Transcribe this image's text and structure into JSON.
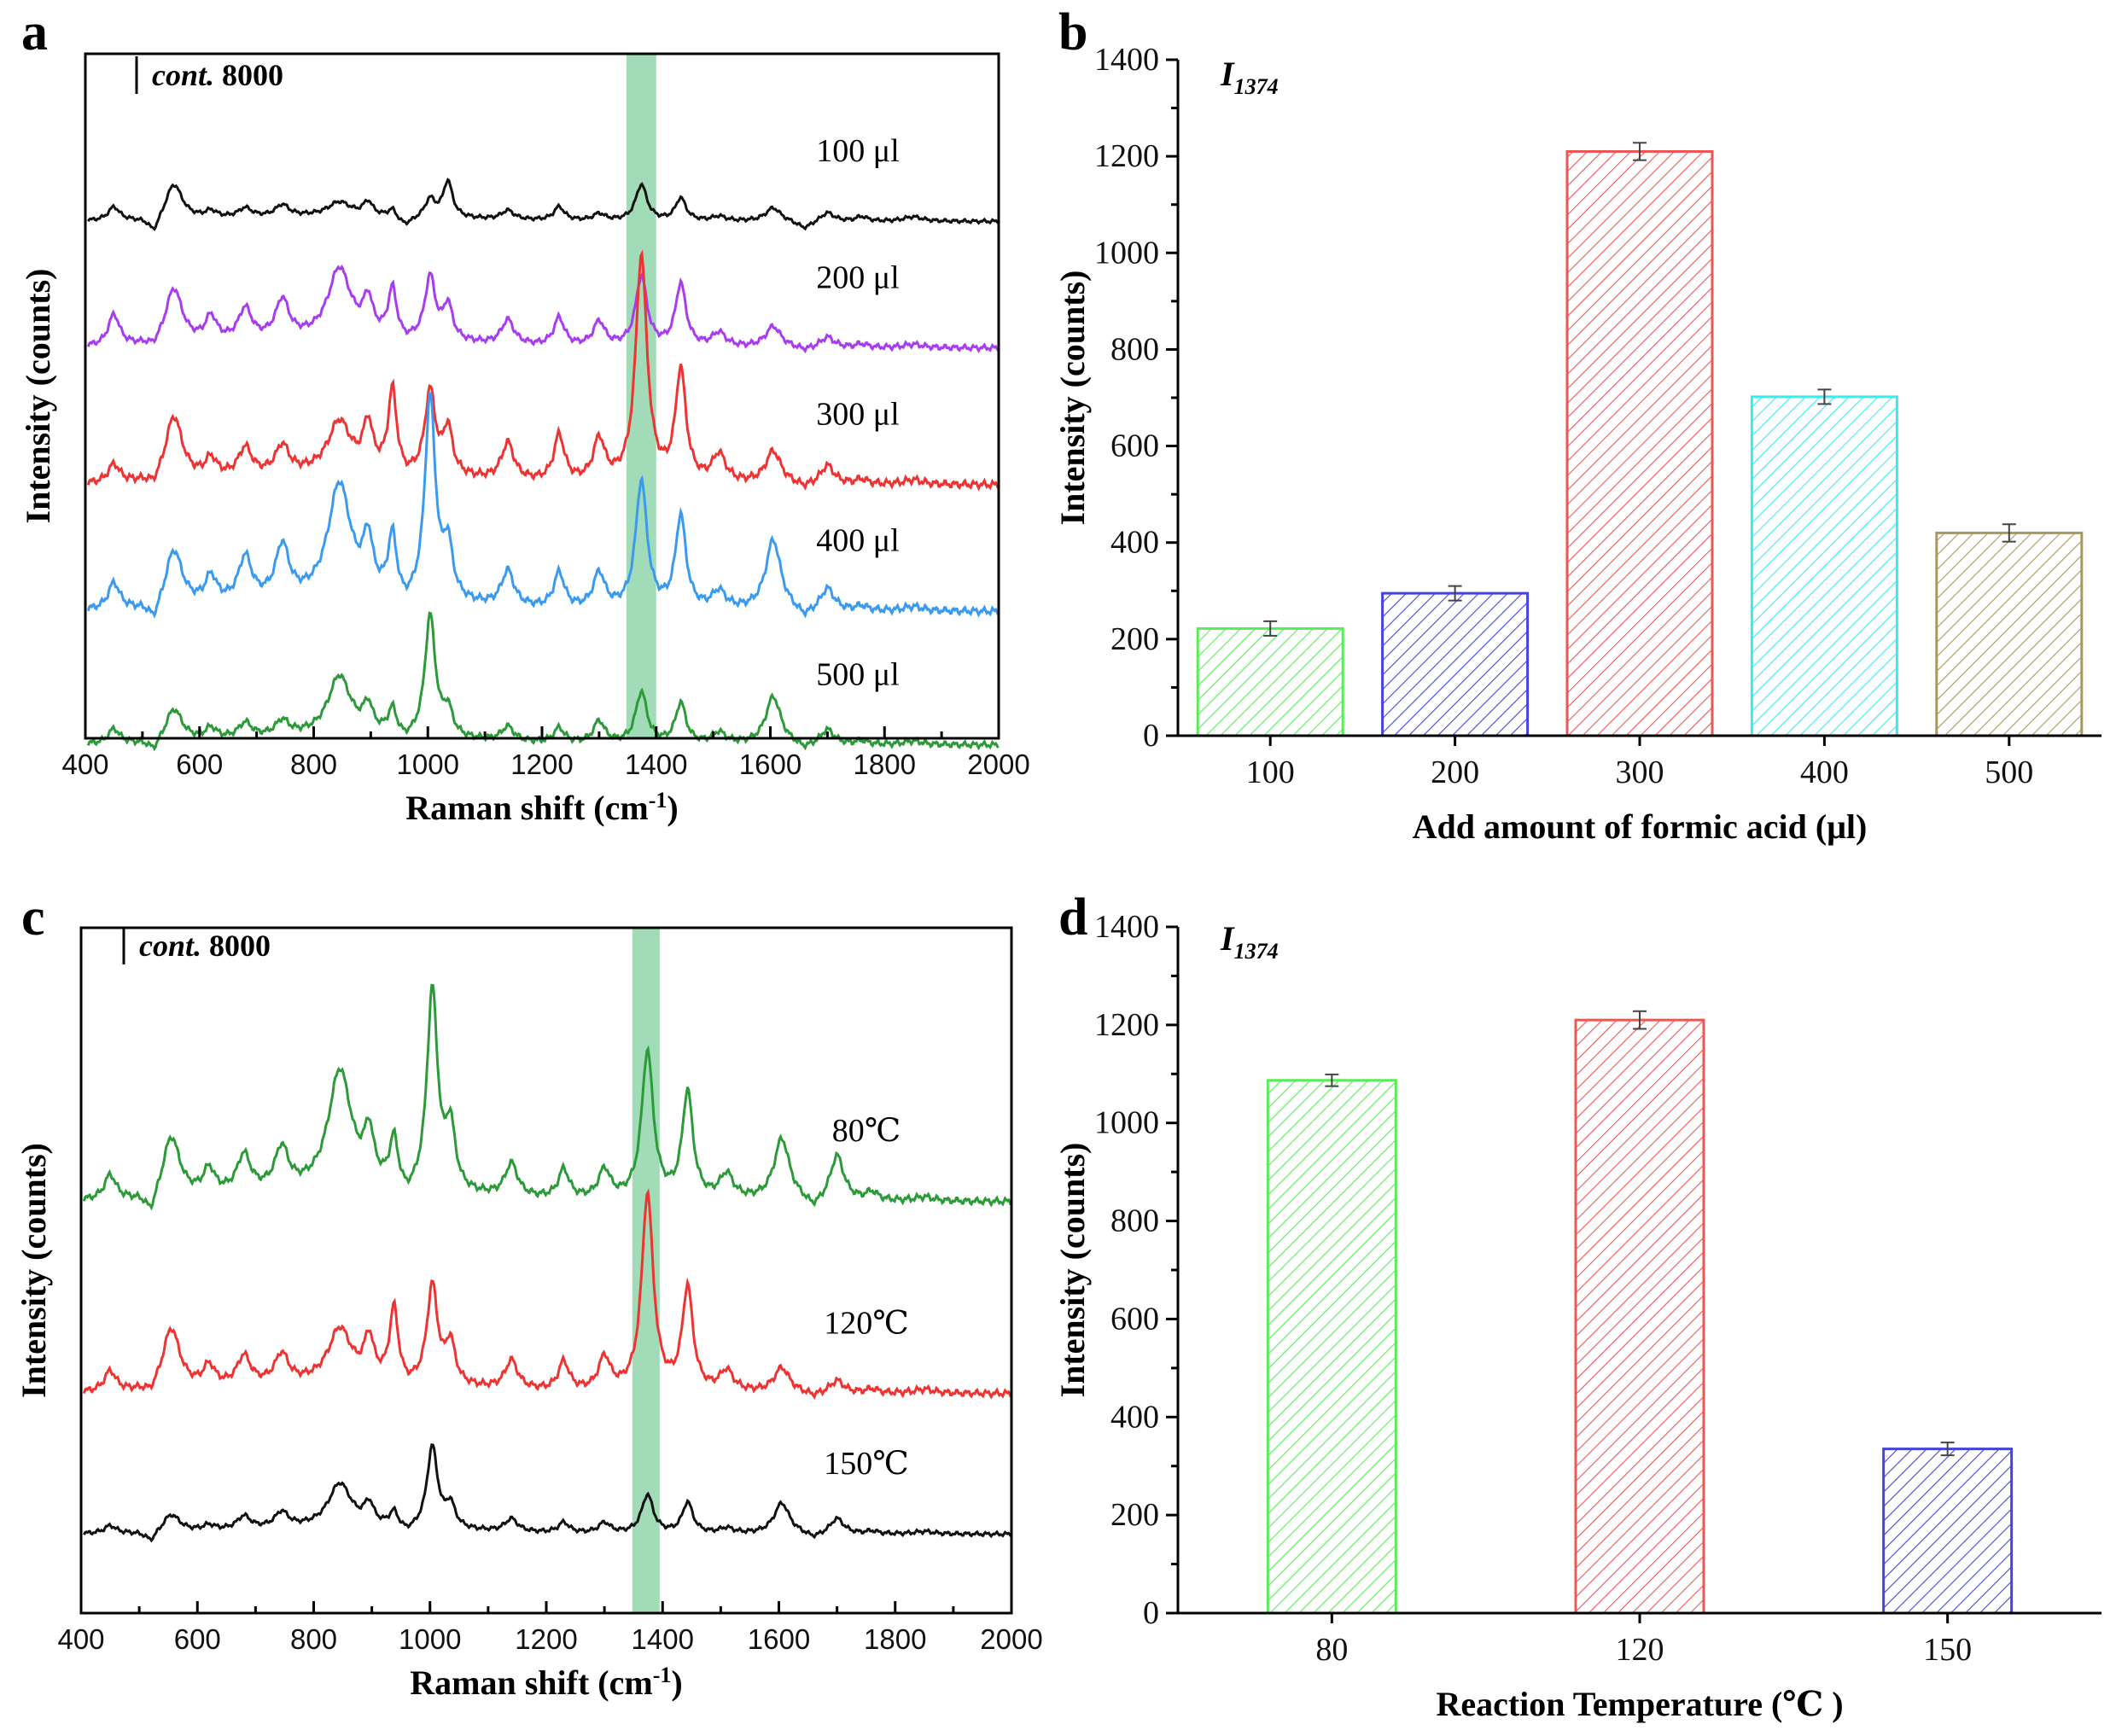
{
  "colors": {
    "black": "#111111",
    "purple": "#a83cf0",
    "red": "#ee3333",
    "blue": "#3a9af0",
    "green": "#2d9a3a",
    "highlight": "#92d5aa",
    "bar_green": "#55ee55",
    "bar_blue": "#4444dd",
    "bar_red": "#ee5555",
    "bar_cyan": "#33eeee",
    "bar_olive": "#aa9955"
  },
  "chart_data": [
    {
      "id": "a",
      "panel_label": "a",
      "type": "line",
      "xlabel": "Raman shift (cm",
      "xlabel_sup": "-1",
      "xlabel_tail": ")",
      "ylabel": "Intensity (counts)",
      "xlim": [
        400,
        2000
      ],
      "xticks": [
        400,
        600,
        800,
        1000,
        1200,
        1400,
        1600,
        1800,
        2000
      ],
      "highlight_band": [
        1348,
        1400
      ],
      "scale_bar": {
        "italic": "cont.",
        "value": "8000"
      },
      "series": [
        {
          "name": "100 µl",
          "label": "100 μl",
          "color_key": "black",
          "offset": 0.755,
          "scale": 0.22,
          "amps": [
            0.3,
            0.8,
            0.15,
            0.2,
            0.25,
            0.3,
            0.3,
            0.2,
            0.4,
            0.8,
            0.2,
            0.3,
            0.15,
            0.8,
            0.5,
            0.1,
            0.3,
            0.2,
            0.1,
            0.1
          ],
          "dip": -0.35
        },
        {
          "name": "200 µl",
          "label": "200 μl",
          "color_key": "purple",
          "offset": 0.57,
          "scale": 0.34,
          "amps": [
            0.45,
            0.8,
            0.35,
            0.45,
            0.55,
            1.0,
            0.5,
            0.7,
            0.9,
            0.5,
            0.35,
            0.4,
            0.35,
            1.0,
            0.9,
            0.2,
            0.3,
            0.15,
            0.05,
            0.05
          ],
          "dip": -0.1
        },
        {
          "name": "300 µl",
          "label": "300 μl",
          "color_key": "red",
          "offset": 0.37,
          "scale": 0.45,
          "amps": [
            0.2,
            0.7,
            0.2,
            0.3,
            0.3,
            0.55,
            0.5,
            0.9,
            0.9,
            0.5,
            0.4,
            0.5,
            0.45,
            2.45,
            1.2,
            0.3,
            0.35,
            0.2,
            0.05,
            0.05
          ],
          "dip": -0.1
        },
        {
          "name": "400 µl",
          "label": "400 μl",
          "color_key": "blue",
          "offset": 0.185,
          "scale": 0.43,
          "amps": [
            0.3,
            0.65,
            0.3,
            0.5,
            0.6,
            1.3,
            0.6,
            0.7,
            2.3,
            0.6,
            0.4,
            0.4,
            0.4,
            1.45,
            1.05,
            0.2,
            0.8,
            0.25,
            0.05,
            0.05
          ],
          "dip": -0.2
        },
        {
          "name": "500 µl",
          "label": "500 μl",
          "color_key": "green",
          "offset": -0.01,
          "scale": 0.36,
          "amps": [
            0.2,
            0.45,
            0.15,
            0.2,
            0.2,
            0.8,
            0.35,
            0.35,
            1.65,
            0.35,
            0.2,
            0.2,
            0.3,
            0.7,
            0.55,
            0.15,
            0.65,
            0.2,
            0.05,
            0.05
          ],
          "dip": -0.15
        }
      ]
    },
    {
      "id": "b",
      "panel_label": "b",
      "type": "bar",
      "title": "I",
      "title_sub": "1374",
      "xlabel": "Add amount of formic acid (μl)",
      "ylabel": "Intensity (counts)",
      "ylim": [
        0,
        1400
      ],
      "yticks": [
        0,
        200,
        400,
        600,
        800,
        1000,
        1200,
        1400
      ],
      "categories": [
        "100",
        "200",
        "300",
        "400",
        "500"
      ],
      "values": [
        222,
        295,
        1210,
        702,
        420
      ],
      "errors": [
        15,
        15,
        18,
        15,
        18
      ],
      "bar_color_keys": [
        "bar_green",
        "bar_blue",
        "bar_red",
        "bar_cyan",
        "bar_olive"
      ]
    },
    {
      "id": "c",
      "panel_label": "c",
      "type": "line",
      "xlabel": "Raman shift (cm",
      "xlabel_sup": "-1",
      "xlabel_tail": ")",
      "ylabel": "Intensity (counts)",
      "xlim": [
        400,
        2000
      ],
      "xticks": [
        400,
        600,
        800,
        1000,
        1200,
        1400,
        1600,
        1800,
        2000
      ],
      "highlight_band": [
        1348,
        1395
      ],
      "scale_bar": {
        "italic": "cont.",
        "value": "8000"
      },
      "series": [
        {
          "name": "80°C",
          "label": "80℃",
          "color_key": "green",
          "offset": 0.6,
          "scale": 0.4,
          "amps": [
            0.3,
            0.75,
            0.3,
            0.45,
            0.5,
            1.45,
            0.6,
            0.6,
            2.45,
            0.75,
            0.4,
            0.35,
            0.35,
            1.8,
            1.3,
            0.3,
            0.75,
            0.55,
            0.1,
            0.05
          ],
          "dip": -0.25
        },
        {
          "name": "120°C",
          "label": "120℃",
          "color_key": "red",
          "offset": 0.32,
          "scale": 0.4,
          "amps": [
            0.25,
            0.75,
            0.25,
            0.35,
            0.35,
            0.65,
            0.5,
            0.9,
            1.2,
            0.5,
            0.35,
            0.35,
            0.4,
            2.4,
            1.25,
            0.25,
            0.3,
            0.15,
            0.05,
            0.05
          ],
          "dip": -0.1
        },
        {
          "name": "150°C",
          "label": "150℃",
          "color_key": "black",
          "offset": 0.115,
          "scale": 0.25,
          "amps": [
            0.15,
            0.35,
            0.1,
            0.25,
            0.3,
            0.85,
            0.4,
            0.3,
            1.6,
            0.45,
            0.25,
            0.2,
            0.2,
            0.75,
            0.6,
            0.1,
            0.6,
            0.3,
            0.05,
            0.05
          ],
          "dip": -0.2
        }
      ]
    },
    {
      "id": "d",
      "panel_label": "d",
      "type": "bar",
      "title": "I",
      "title_sub": "1374",
      "xlabel": "Reaction Temperature (℃ )",
      "ylabel": "Intensity (counts)",
      "ylim": [
        0,
        1400
      ],
      "yticks": [
        0,
        200,
        400,
        600,
        800,
        1000,
        1200,
        1400
      ],
      "categories": [
        "80",
        "120",
        "150"
      ],
      "values": [
        1087,
        1210,
        335
      ],
      "errors": [
        12,
        18,
        13
      ],
      "bar_color_keys": [
        "bar_green",
        "bar_red",
        "bar_blue"
      ]
    }
  ]
}
